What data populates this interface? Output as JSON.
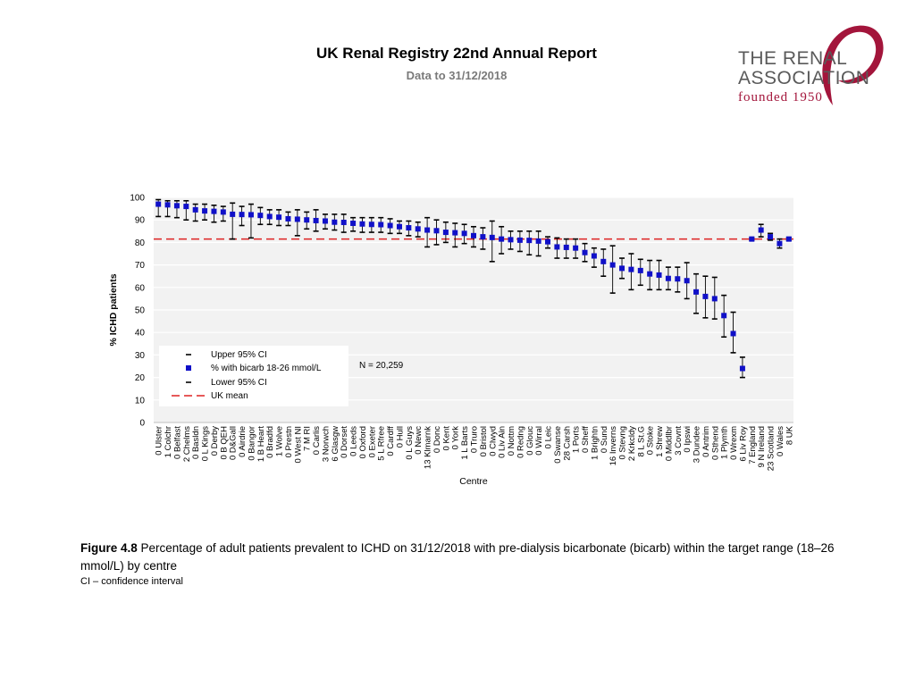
{
  "header": {
    "title": "UK Renal Registry 22nd Annual Report",
    "subtitle": "Data to 31/12/2018"
  },
  "logo": {
    "line1": "THE RENAL",
    "line2": "ASSOCIATION",
    "line3": "founded 1950",
    "text_color": "#5a5a5a",
    "accent_color": "#a3153b"
  },
  "caption": {
    "label": "Figure 4.8",
    "text": " Percentage of adult patients prevalent to ICHD on 31/12/2018 with pre-dialysis bicarbonate (bicarb) within the target range (18–26 mmol/L) by centre",
    "note": "CI – confidence interval"
  },
  "colors": {
    "point": "#1010c8",
    "mean_line": "#dd2222",
    "plot_bg": "#f2f2f2",
    "grid": "#ffffff"
  },
  "chart_data": {
    "type": "scatter",
    "xlabel": "Centre",
    "ylabel": "% ICHD patients",
    "ylim": [
      0,
      100
    ],
    "yticks": [
      0,
      10,
      20,
      30,
      40,
      50,
      60,
      70,
      80,
      90,
      100
    ],
    "uk_mean": 81.5,
    "annotation": "N = 20,259",
    "legend": {
      "upper": "Upper 95% CI",
      "point": "% with bicarb 18-26 mmol/L",
      "lower": "Lower 95% CI",
      "mean": "UK mean"
    },
    "categories": [
      "0 Ulster",
      "1 Colchr",
      "0 Belfast",
      "2 Chelms",
      "0 Basldn",
      "0 L Kings",
      "0 Derby",
      "0 B QEH",
      "0 D&Gall",
      "0 Airdrie",
      "0 Bangor",
      "1 B Heart",
      "0 Bradfd",
      "1 Wolve",
      "0 Prestn",
      "0 West NI",
      "7 M RI",
      "0 Carlis",
      "3 Norwch",
      "6 Glasgw",
      "0 Dorset",
      "0 Leeds",
      "0 Oxford",
      "0 Exeter",
      "5 L Rfree",
      "0 Cardff",
      "0 Hull",
      "0 L Guys",
      "0 Newc",
      "13 Klmarnk",
      "0 Donc",
      "0 Kent",
      "0 York",
      "1 L Barts",
      "0 Truro",
      "0 Bristol",
      "0 Clwyd",
      "0 Liv Ain",
      "0 Nottm",
      "0 Redng",
      "0 Glouc",
      "0 Wirral",
      "0 Leic",
      "0 Swanse",
      "28 Carsh",
      "1 Ports",
      "0 Sheff",
      "1 Brightn",
      "0 Sund",
      "16 Inverns",
      "0 Stevng",
      "2 Krkcldy",
      "8 L St.G",
      "0 Stoke",
      "1 Shrew",
      "0 Middlbr",
      "3 Covnt",
      "0 Ipswi",
      "3 Dundee",
      "0 Antrim",
      "0 Sthend",
      "1 Plymth",
      "0 Wrexm",
      "6 Liv Roy",
      "7 England",
      "9 N Ireland",
      "23 Scotland",
      "0 Wales",
      "8 UK"
    ],
    "values": [
      97,
      96.7,
      96.3,
      96,
      94.5,
      94,
      93.8,
      93.5,
      92.5,
      92.4,
      92.3,
      92,
      91.5,
      91.2,
      90.5,
      90.3,
      90,
      89.7,
      89.5,
      89,
      88.9,
      88.5,
      88.2,
      88,
      87.9,
      87.5,
      87,
      86.5,
      86,
      85.5,
      85.2,
      84.5,
      84.3,
      84,
      83,
      82.5,
      82.2,
      81.5,
      81.2,
      81,
      80.9,
      80.6,
      80.3,
      78,
      77.8,
      77.5,
      75.5,
      74,
      71.5,
      70,
      68.5,
      68,
      67.5,
      66,
      65.5,
      64,
      63.8,
      63,
      58,
      56,
      55,
      47.5,
      39.5,
      24,
      81.5,
      85.5,
      82.5,
      79.5,
      81.5
    ],
    "upper_ci": [
      99,
      98.5,
      98.5,
      98.5,
      97,
      97,
      96.5,
      96,
      97.5,
      96,
      97,
      95.5,
      94.5,
      94.5,
      93.5,
      94.5,
      93.5,
      94.5,
      92.5,
      92.5,
      92.5,
      91,
      91,
      91,
      91,
      90.5,
      89.5,
      89.5,
      89,
      91,
      90,
      89,
      88.5,
      88,
      87,
      86.5,
      89.5,
      87,
      85,
      85,
      85,
      85,
      82.5,
      82,
      81.5,
      81.5,
      79.5,
      77.5,
      77,
      78.5,
      73,
      75,
      72.5,
      72,
      72,
      69,
      69,
      71,
      66,
      65,
      64.5,
      56.5,
      49,
      29,
      82,
      88,
      84,
      81.5,
      82
    ],
    "lower_ci": [
      91.5,
      91.5,
      91,
      90,
      89.5,
      90,
      89,
      89.5,
      81.5,
      87.5,
      82,
      88,
      88,
      87.5,
      87.5,
      83,
      86,
      85,
      86,
      85.5,
      84.5,
      85,
      84.5,
      84.5,
      84.5,
      84,
      84,
      83,
      82.5,
      78,
      79,
      80,
      78,
      79.5,
      78,
      77,
      71.5,
      75,
      77,
      76,
      74.5,
      74,
      77.5,
      73,
      73,
      73,
      71.5,
      69,
      65,
      57.5,
      64,
      59,
      61,
      59,
      59,
      59,
      58,
      55,
      48.5,
      46.5,
      46,
      38,
      31,
      20,
      81,
      82.5,
      81,
      77.5,
      81
    ]
  }
}
